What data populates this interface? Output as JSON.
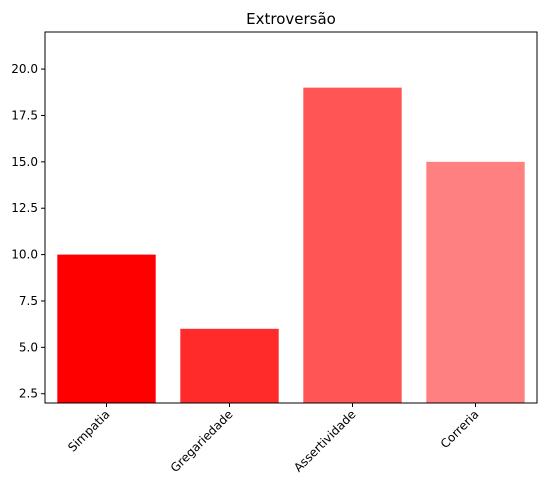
{
  "chart_data": {
    "type": "bar",
    "title": "Extroversão",
    "categories": [
      "Simpatia",
      "Gregariedade",
      "Assertividade",
      "Correria"
    ],
    "values": [
      10,
      6,
      19,
      15
    ],
    "bar_colors": [
      "#ff0000",
      "#ff2b2b",
      "#ff5555",
      "#ff8080"
    ],
    "xlabel": "",
    "ylabel": "",
    "ylim": [
      2.0,
      22.0
    ],
    "yticks": [
      2.5,
      5.0,
      7.5,
      10.0,
      12.5,
      15.0,
      17.5,
      20.0
    ],
    "ytick_labels": [
      "2.5",
      "5.0",
      "7.5",
      "10.0",
      "12.5",
      "15.0",
      "17.5",
      "20.0"
    ],
    "grid": false,
    "legend": null
  }
}
